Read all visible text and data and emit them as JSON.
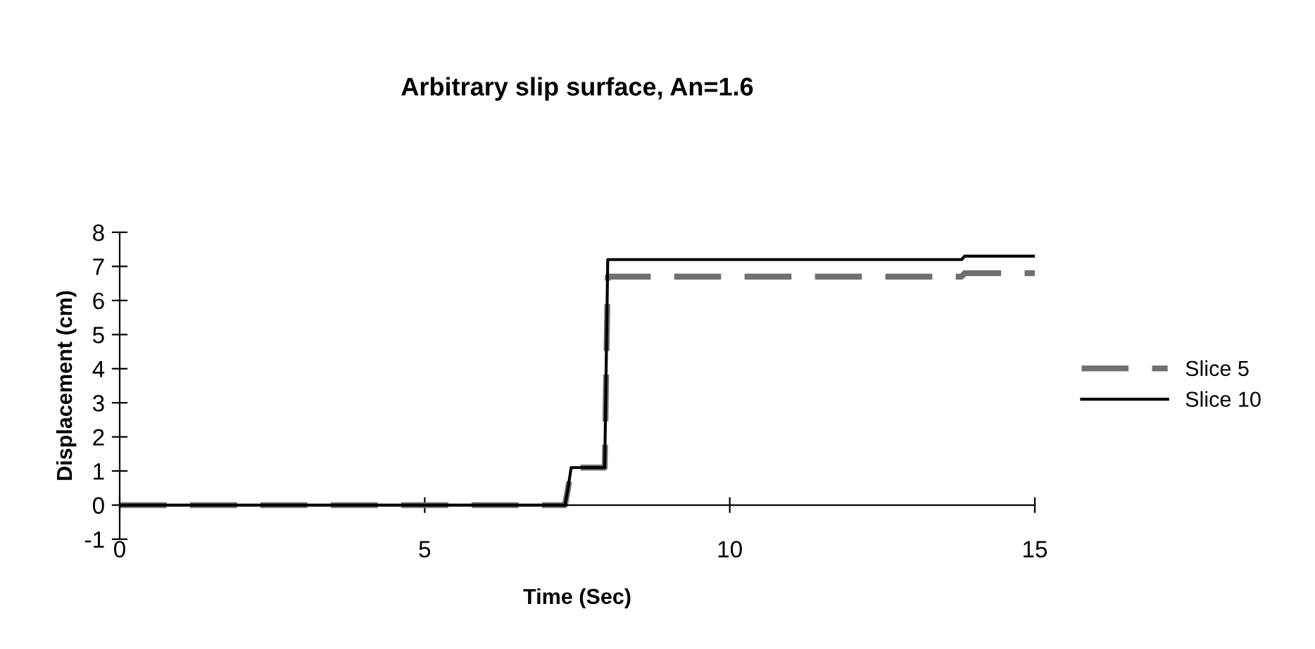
{
  "chart_data": {
    "type": "line",
    "title": "Arbitrary slip surface, An=1.6",
    "xlabel": "Time (Sec)",
    "ylabel": "Displacement (cm)",
    "xlim": [
      0,
      15
    ],
    "ylim": [
      -1,
      8
    ],
    "xticks": [
      0,
      5,
      10,
      15
    ],
    "yticks": [
      -1,
      0,
      1,
      2,
      3,
      4,
      5,
      6,
      7,
      8
    ],
    "grid": false,
    "legend": "right",
    "marker": "none",
    "series": [
      {
        "name": "Slice 5",
        "color": "#707070",
        "line_style": "dashed",
        "x": [
          0,
          7.3,
          7.35,
          7.4,
          7.95,
          8.0,
          13.8,
          13.85,
          15
        ],
        "values": [
          0,
          0,
          0.5,
          1.1,
          1.1,
          6.7,
          6.7,
          6.8,
          6.8
        ]
      },
      {
        "name": "Slice 10",
        "color": "#000000",
        "line_style": "solid",
        "x": [
          0,
          7.3,
          7.35,
          7.4,
          7.95,
          8.0,
          13.8,
          13.85,
          15
        ],
        "values": [
          0,
          0,
          0.5,
          1.1,
          1.1,
          7.2,
          7.2,
          7.3,
          7.3
        ]
      }
    ]
  }
}
